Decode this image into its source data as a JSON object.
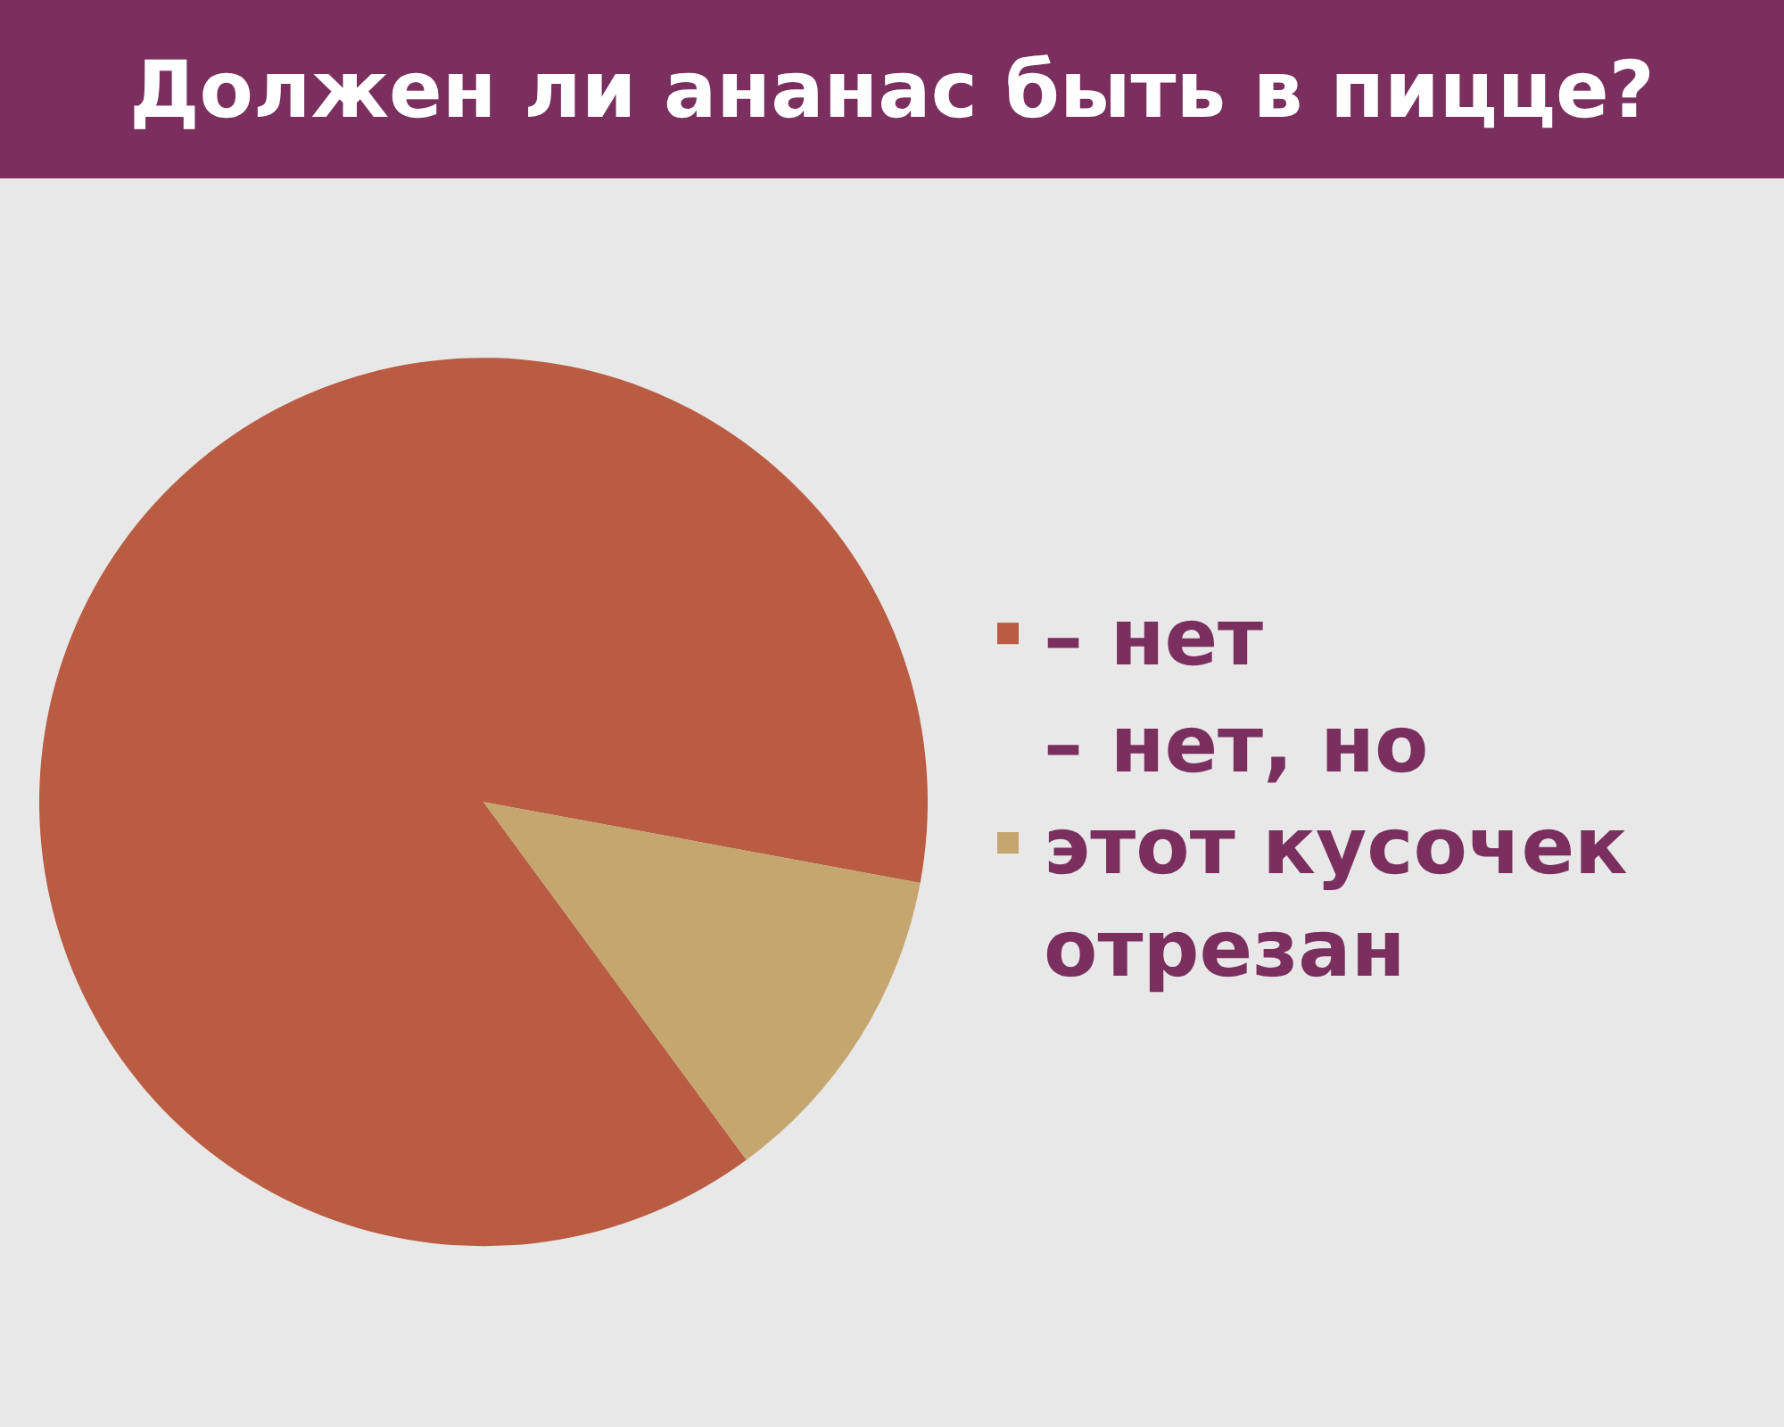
{
  "chart_data": {
    "type": "pie",
    "title": "Должен ли ананас быть в пицце?",
    "categories": [
      "– нет",
      "– нет, но этот кусочек отрезан"
    ],
    "values": [
      88,
      12
    ],
    "colors": [
      "#b95c42",
      "#c5a66e"
    ],
    "legend": "right"
  }
}
